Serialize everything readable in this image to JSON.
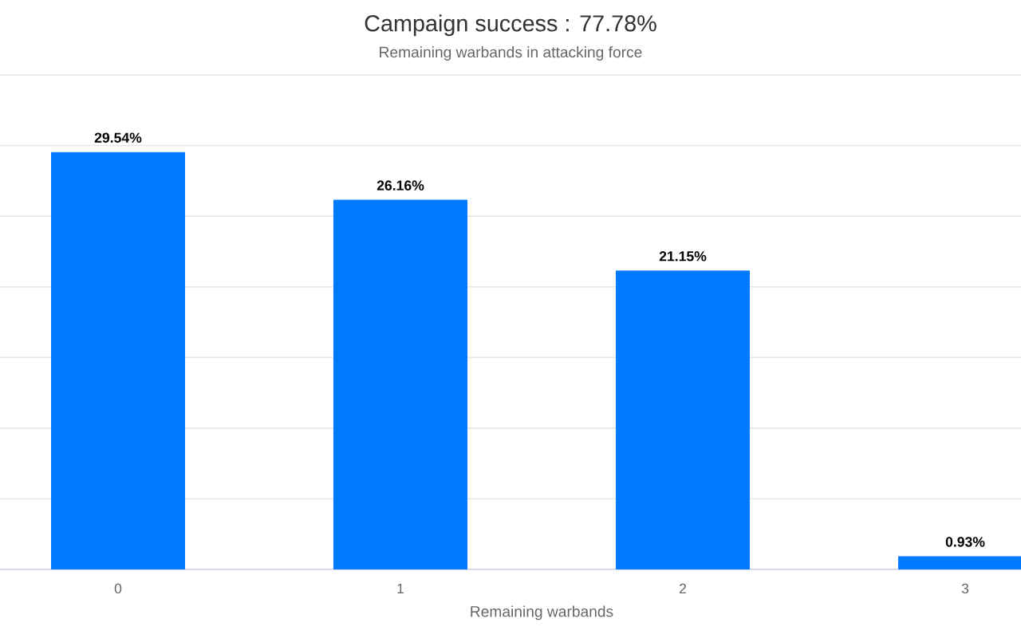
{
  "chart_data": {
    "type": "bar",
    "title": "Campaign success : 77.78%",
    "subtitle": "Remaining warbands in attacking force",
    "xlabel": "Remaining warbands",
    "categories": [
      "0",
      "1",
      "2",
      "3"
    ],
    "values": [
      29.54,
      26.16,
      21.15,
      0.93
    ],
    "value_labels": [
      "29.54%",
      "26.16%",
      "21.15%",
      "0.93%"
    ],
    "color": "#007bff",
    "ylim": [
      0,
      35
    ],
    "yticks": [
      {
        "value": 0,
        "label": null
      },
      {
        "value": 5,
        "label": null
      },
      {
        "value": 10,
        "label": null
      },
      {
        "value": 15,
        "label": null
      },
      {
        "value": 20,
        "label": null
      },
      {
        "value": 25,
        "label": null
      },
      {
        "value": 30,
        "label": null
      },
      {
        "value": 35,
        "label": null
      }
    ],
    "grid": "y",
    "tick_labels": "x"
  }
}
